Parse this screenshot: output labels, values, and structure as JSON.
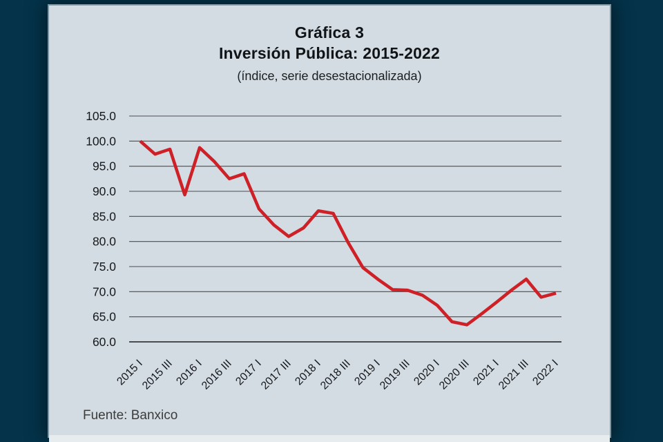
{
  "window": {
    "outer_background": "#04334a",
    "panel_background": "#d3dce2",
    "footer_strip_background": "#e7ecef"
  },
  "chart_data": {
    "type": "line",
    "title": "Gráfica 3",
    "subtitle": "Inversión Pública: 2015-2022",
    "caption": "(índice, serie desestacionalizada)",
    "source": "Fuente: Banxico",
    "x": [
      "2015 I",
      "2015 II",
      "2015 III",
      "2015 IV",
      "2016 I",
      "2016 II",
      "2016 III",
      "2016 IV",
      "2017 I",
      "2017 II",
      "2017 III",
      "2017 IV",
      "2018 I",
      "2018 II",
      "2018 III",
      "2018 IV",
      "2019 I",
      "2019 II",
      "2019 III",
      "2019 IV",
      "2020 I",
      "2020 II",
      "2020 III",
      "2020 IV",
      "2021 I",
      "2021 II",
      "2021 III",
      "2021 IV",
      "2022 I"
    ],
    "values": [
      100.0,
      97.4,
      98.4,
      89.3,
      98.7,
      95.9,
      92.5,
      93.5,
      86.5,
      83.3,
      81.0,
      82.7,
      86.1,
      85.6,
      79.8,
      74.8,
      72.5,
      70.4,
      70.3,
      69.3,
      67.3,
      64.0,
      63.4,
      65.6,
      67.9,
      70.3,
      72.5,
      68.9,
      69.7
    ],
    "x_tick_labels": [
      "2015 I",
      "2015 III",
      "2016 I",
      "2016 III",
      "2017 I",
      "2017 III",
      "2018 I",
      "2018 III",
      "2019 I",
      "2019 III",
      "2020 I",
      "2020 III",
      "2021 I",
      "2021 III",
      "2022 I"
    ],
    "x_tick_every": 2,
    "y_ticks": [
      105.0,
      100.0,
      95.0,
      90.0,
      85.0,
      80.0,
      75.0,
      70.0,
      65.0,
      60.0
    ],
    "y_tick_labels": [
      "105.0",
      "100.0",
      "95.0",
      "90.0",
      "85.0",
      "80.0",
      "75.0",
      "70.0",
      "65.0",
      "60.0"
    ],
    "ylim": [
      60,
      105
    ],
    "grid": true,
    "legend": "none",
    "line_color": "#ce2127",
    "grid_color": "#4a4d50",
    "axis_color": "#33383b",
    "tick_label_color": "#16191c"
  }
}
